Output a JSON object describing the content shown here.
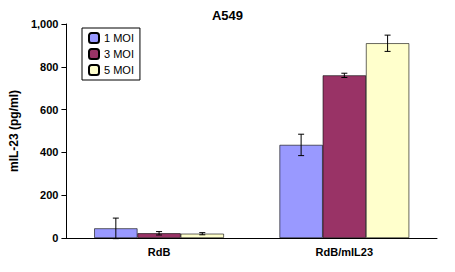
{
  "chart_data": {
    "type": "bar",
    "title": "A549",
    "y_label": "mIL-23 (pg/ml)",
    "categories": [
      "RdB",
      "RdB/mIL23"
    ],
    "series": [
      {
        "name": "1 MOI",
        "color": "#9999ff",
        "values": [
          45,
          435
        ],
        "errors": [
          48,
          50
        ]
      },
      {
        "name": "3 MOI",
        "color": "#993366",
        "values": [
          22,
          760
        ],
        "errors": [
          8,
          10
        ]
      },
      {
        "name": "5 MOI",
        "color": "#ffffcc",
        "values": [
          20,
          910
        ],
        "errors": [
          5,
          38
        ]
      }
    ],
    "ylim": [
      0,
      1000
    ],
    "yticks": [
      0,
      200,
      400,
      600,
      800,
      1000
    ],
    "grid": false,
    "legend": "top-left"
  }
}
